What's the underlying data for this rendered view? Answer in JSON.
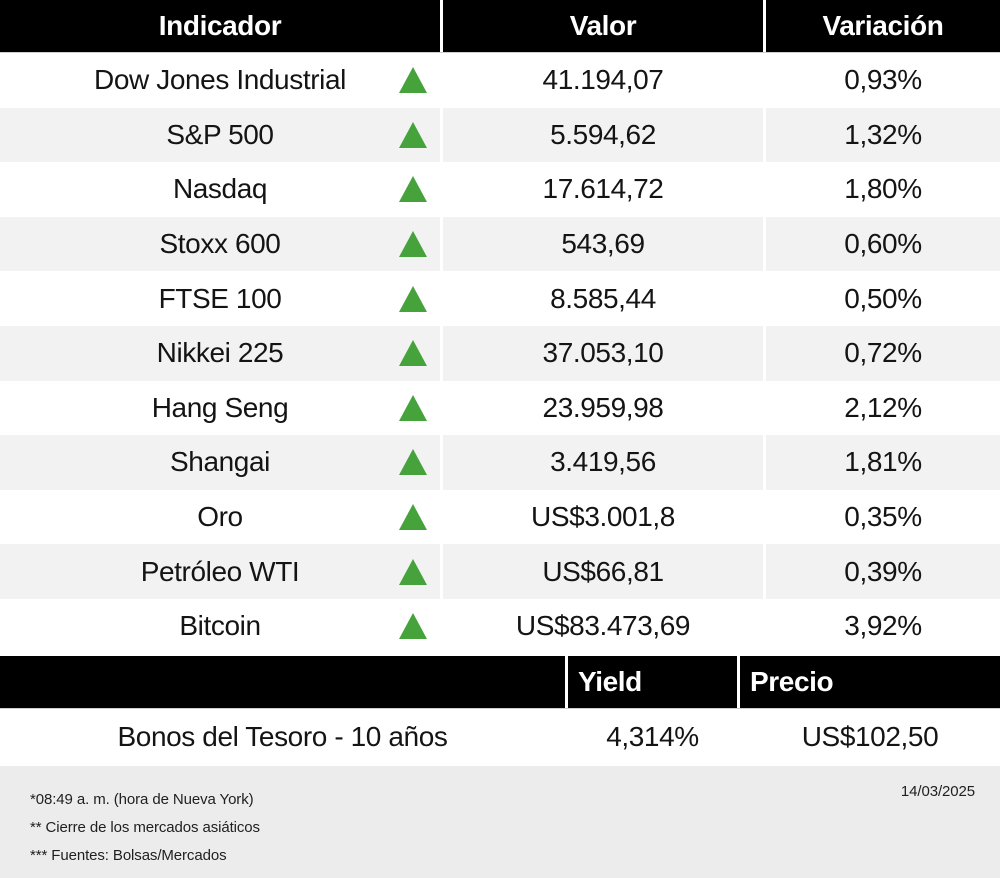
{
  "colors": {
    "green": "#46a33c",
    "stripe": "#f2f2f2",
    "header_bg": "#000000",
    "footer_bg": "#ececec"
  },
  "main_table": {
    "headers": [
      "Indicador",
      "Valor",
      "Variación"
    ],
    "rows": [
      {
        "indicator": "Dow Jones Industrial",
        "direction": "up",
        "value": "41.194,07",
        "variation": "0,93%"
      },
      {
        "indicator": "S&P 500",
        "direction": "up",
        "value": "5.594,62",
        "variation": "1,32%"
      },
      {
        "indicator": "Nasdaq",
        "direction": "up",
        "value": "17.614,72",
        "variation": "1,80%"
      },
      {
        "indicator": "Stoxx 600",
        "direction": "up",
        "value": "543,69",
        "variation": "0,60%"
      },
      {
        "indicator": "FTSE 100",
        "direction": "up",
        "value": "8.585,44",
        "variation": "0,50%"
      },
      {
        "indicator": "Nikkei 225",
        "direction": "up",
        "value": "37.053,10",
        "variation": "0,72%"
      },
      {
        "indicator": "Hang Seng",
        "direction": "up",
        "value": "23.959,98",
        "variation": "2,12%"
      },
      {
        "indicator": "Shangai",
        "direction": "up",
        "value": "3.419,56",
        "variation": "1,81%"
      },
      {
        "indicator": "Oro",
        "direction": "up",
        "value": "US$3.001,8",
        "variation": "0,35%"
      },
      {
        "indicator": "Petróleo WTI",
        "direction": "up",
        "value": "US$66,81",
        "variation": "0,39%"
      },
      {
        "indicator": "Bitcoin",
        "direction": "up",
        "value": "US$83.473,69",
        "variation": "3,92%"
      }
    ]
  },
  "bond_table": {
    "headers": [
      "",
      "Yield",
      "Precio"
    ],
    "row": {
      "label": "Bonos del Tesoro - 10 años",
      "yield": "4,314%",
      "price": "US$102,50"
    }
  },
  "footer": {
    "notes": [
      "*08:49 a. m. (hora de Nueva York)",
      "** Cierre de los mercados asiáticos",
      "*** Fuentes: Bolsas/Mercados"
    ],
    "date": "14/03/2025"
  },
  "chart_data": {
    "type": "table",
    "title": "Indicadores de mercado",
    "columns": [
      "Indicador",
      "Valor",
      "Variación"
    ],
    "rows": [
      [
        "Dow Jones Industrial",
        "41.194,07",
        "0,93%"
      ],
      [
        "S&P 500",
        "5.594,62",
        "1,32%"
      ],
      [
        "Nasdaq",
        "17.614,72",
        "1,80%"
      ],
      [
        "Stoxx 600",
        "543,69",
        "0,60%"
      ],
      [
        "FTSE 100",
        "8.585,44",
        "0,50%"
      ],
      [
        "Nikkei 225",
        "37.053,10",
        "0,72%"
      ],
      [
        "Hang Seng",
        "23.959,98",
        "2,12%"
      ],
      [
        "Shangai",
        "3.419,56",
        "1,81%"
      ],
      [
        "Oro",
        "US$3.001,8",
        "0,35%"
      ],
      [
        "Petróleo WTI",
        "US$66,81",
        "0,39%"
      ],
      [
        "Bitcoin",
        "US$83.473,69",
        "3,92%"
      ]
    ],
    "all_directions": "up",
    "secondary_table": {
      "columns": [
        "",
        "Yield",
        "Precio"
      ],
      "rows": [
        [
          "Bonos del Tesoro - 10 años",
          "4,314%",
          "US$102,50"
        ]
      ]
    },
    "date": "14/03/2025"
  }
}
